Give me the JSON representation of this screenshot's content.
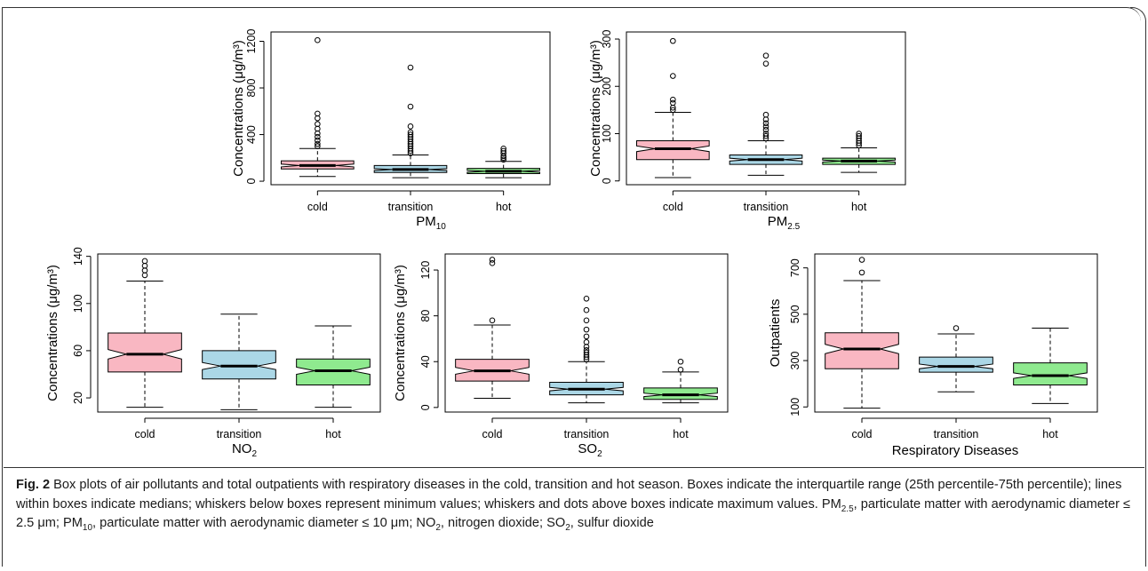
{
  "caption": {
    "fig_label": "Fig. 2",
    "text_1": " Box plots of air pollutants and total outpatients with respiratory diseases in the cold, transition and hot season. Boxes indicate the interquartile range (25th percentile-75th percentile); lines within boxes indicate medians; whiskers below boxes represent minimum values; whiskers and dots above boxes indicate maximum values. PM",
    "sub_1": "2.5",
    "text_2": ", particulate matter with aerodynamic diameter ≤ 2.5 μm; PM",
    "sub_2": "10",
    "text_3": ", particulate matter with aerodynamic diameter ≤ 10 μm; NO",
    "sub_3": "2",
    "text_4": ", nitrogen dioxide; SO",
    "sub_4": "2",
    "text_5": ", sulfur dioxide"
  },
  "labels": {
    "pm10_main": "PM",
    "pm10_sub": "10",
    "pm25_main": "PM",
    "pm25_sub": "2.5",
    "no2_main": "NO",
    "no2_sub": "2",
    "so2_main": "SO",
    "so2_sub": "2",
    "resp": "Respiratory Diseases"
  },
  "colors": {
    "cold": "#f9b7c2",
    "transition": "#abd7e6",
    "hot": "#8fea8f"
  },
  "chart_data": [
    {
      "id": "pm10",
      "type": "box",
      "xlabel": "PM10",
      "ylabel": "Concentrations (μg/m³)",
      "categories": [
        "cold",
        "transition",
        "hot"
      ],
      "ylim": [
        -30,
        1280
      ],
      "yticks": [
        0,
        400,
        800,
        1200
      ],
      "boxes": [
        {
          "min": 40,
          "q1": 105,
          "median": 135,
          "q3": 175,
          "max": 280,
          "notch": 12,
          "outliers": [
            300,
            320,
            350,
            380,
            410,
            450,
            490,
            540,
            580,
            1210
          ]
        },
        {
          "min": 30,
          "q1": 75,
          "median": 100,
          "q3": 135,
          "max": 225,
          "notch": 8,
          "outliers": [
            240,
            260,
            280,
            300,
            320,
            340,
            360,
            380,
            400,
            420,
            470,
            640,
            975
          ]
        },
        {
          "min": 30,
          "q1": 65,
          "median": 85,
          "q3": 110,
          "max": 170,
          "notch": 8,
          "outliers": [
            185,
            200,
            215,
            240,
            260,
            280
          ]
        }
      ]
    },
    {
      "id": "pm25",
      "type": "box",
      "xlabel": "PM2.5",
      "ylabel": "Concentrations (μg/m³)",
      "categories": [
        "cold",
        "transition",
        "hot"
      ],
      "ylim": [
        -8,
        315
      ],
      "yticks": [
        0,
        100,
        200,
        300
      ],
      "boxes": [
        {
          "min": 7,
          "q1": 45,
          "median": 68,
          "q3": 85,
          "max": 145,
          "notch": 6,
          "outliers": [
            150,
            155,
            165,
            172,
            222,
            296
          ]
        },
        {
          "min": 12,
          "q1": 35,
          "median": 45,
          "q3": 55,
          "max": 85,
          "notch": 3,
          "outliers": [
            90,
            95,
            100,
            108,
            115,
            122,
            130,
            140,
            248,
            265
          ]
        },
        {
          "min": 18,
          "q1": 35,
          "median": 42,
          "q3": 48,
          "max": 70,
          "notch": 2,
          "outliers": [
            75,
            80,
            85,
            90,
            95,
            100
          ]
        }
      ]
    },
    {
      "id": "no2",
      "type": "box",
      "xlabel": "NO2",
      "ylabel": "Concentrations (μg/m³)",
      "categories": [
        "cold",
        "transition",
        "hot"
      ],
      "ylim": [
        8,
        142
      ],
      "yticks": [
        20,
        60,
        100,
        140
      ],
      "boxes": [
        {
          "min": 12,
          "q1": 42,
          "median": 57,
          "q3": 75,
          "max": 119,
          "notch": 4,
          "outliers": [
            124,
            128,
            132,
            136
          ]
        },
        {
          "min": 10,
          "q1": 36,
          "median": 47,
          "q3": 60,
          "max": 91,
          "notch": 3,
          "outliers": []
        },
        {
          "min": 12,
          "q1": 31,
          "median": 43,
          "q3": 53,
          "max": 81,
          "notch": 3,
          "outliers": []
        }
      ]
    },
    {
      "id": "so2",
      "type": "box",
      "xlabel": "SO2",
      "ylabel": "Concentrations (μg/m³)",
      "categories": [
        "cold",
        "transition",
        "hot"
      ],
      "ylim": [
        -4,
        134
      ],
      "yticks": [
        0,
        40,
        80,
        120
      ],
      "boxes": [
        {
          "min": 8,
          "q1": 23,
          "median": 32,
          "q3": 42,
          "max": 72,
          "notch": 3,
          "outliers": [
            76,
            126,
            129
          ]
        },
        {
          "min": 4,
          "q1": 11,
          "median": 16,
          "q3": 22,
          "max": 40,
          "notch": 1.5,
          "outliers": [
            42,
            44,
            46,
            48,
            50,
            53,
            57,
            62,
            68,
            76,
            85,
            95
          ]
        },
        {
          "min": 4,
          "q1": 7,
          "median": 11,
          "q3": 17,
          "max": 31,
          "notch": 1.5,
          "outliers": [
            33,
            40
          ]
        }
      ]
    },
    {
      "id": "resp",
      "type": "box",
      "xlabel": "Respiratory Diseases",
      "ylabel": "Outpatients",
      "categories": [
        "cold",
        "transition",
        "hot"
      ],
      "ylim": [
        78,
        760
      ],
      "yticks": [
        100,
        300,
        500,
        700
      ],
      "boxes": [
        {
          "min": 95,
          "q1": 265,
          "median": 350,
          "q3": 420,
          "max": 645,
          "notch": 20,
          "outliers": [
            680,
            735
          ]
        },
        {
          "min": 165,
          "q1": 250,
          "median": 275,
          "q3": 315,
          "max": 415,
          "notch": 10,
          "outliers": [
            440
          ]
        },
        {
          "min": 115,
          "q1": 195,
          "median": 235,
          "q3": 290,
          "max": 440,
          "notch": 12,
          "outliers": []
        }
      ]
    }
  ]
}
